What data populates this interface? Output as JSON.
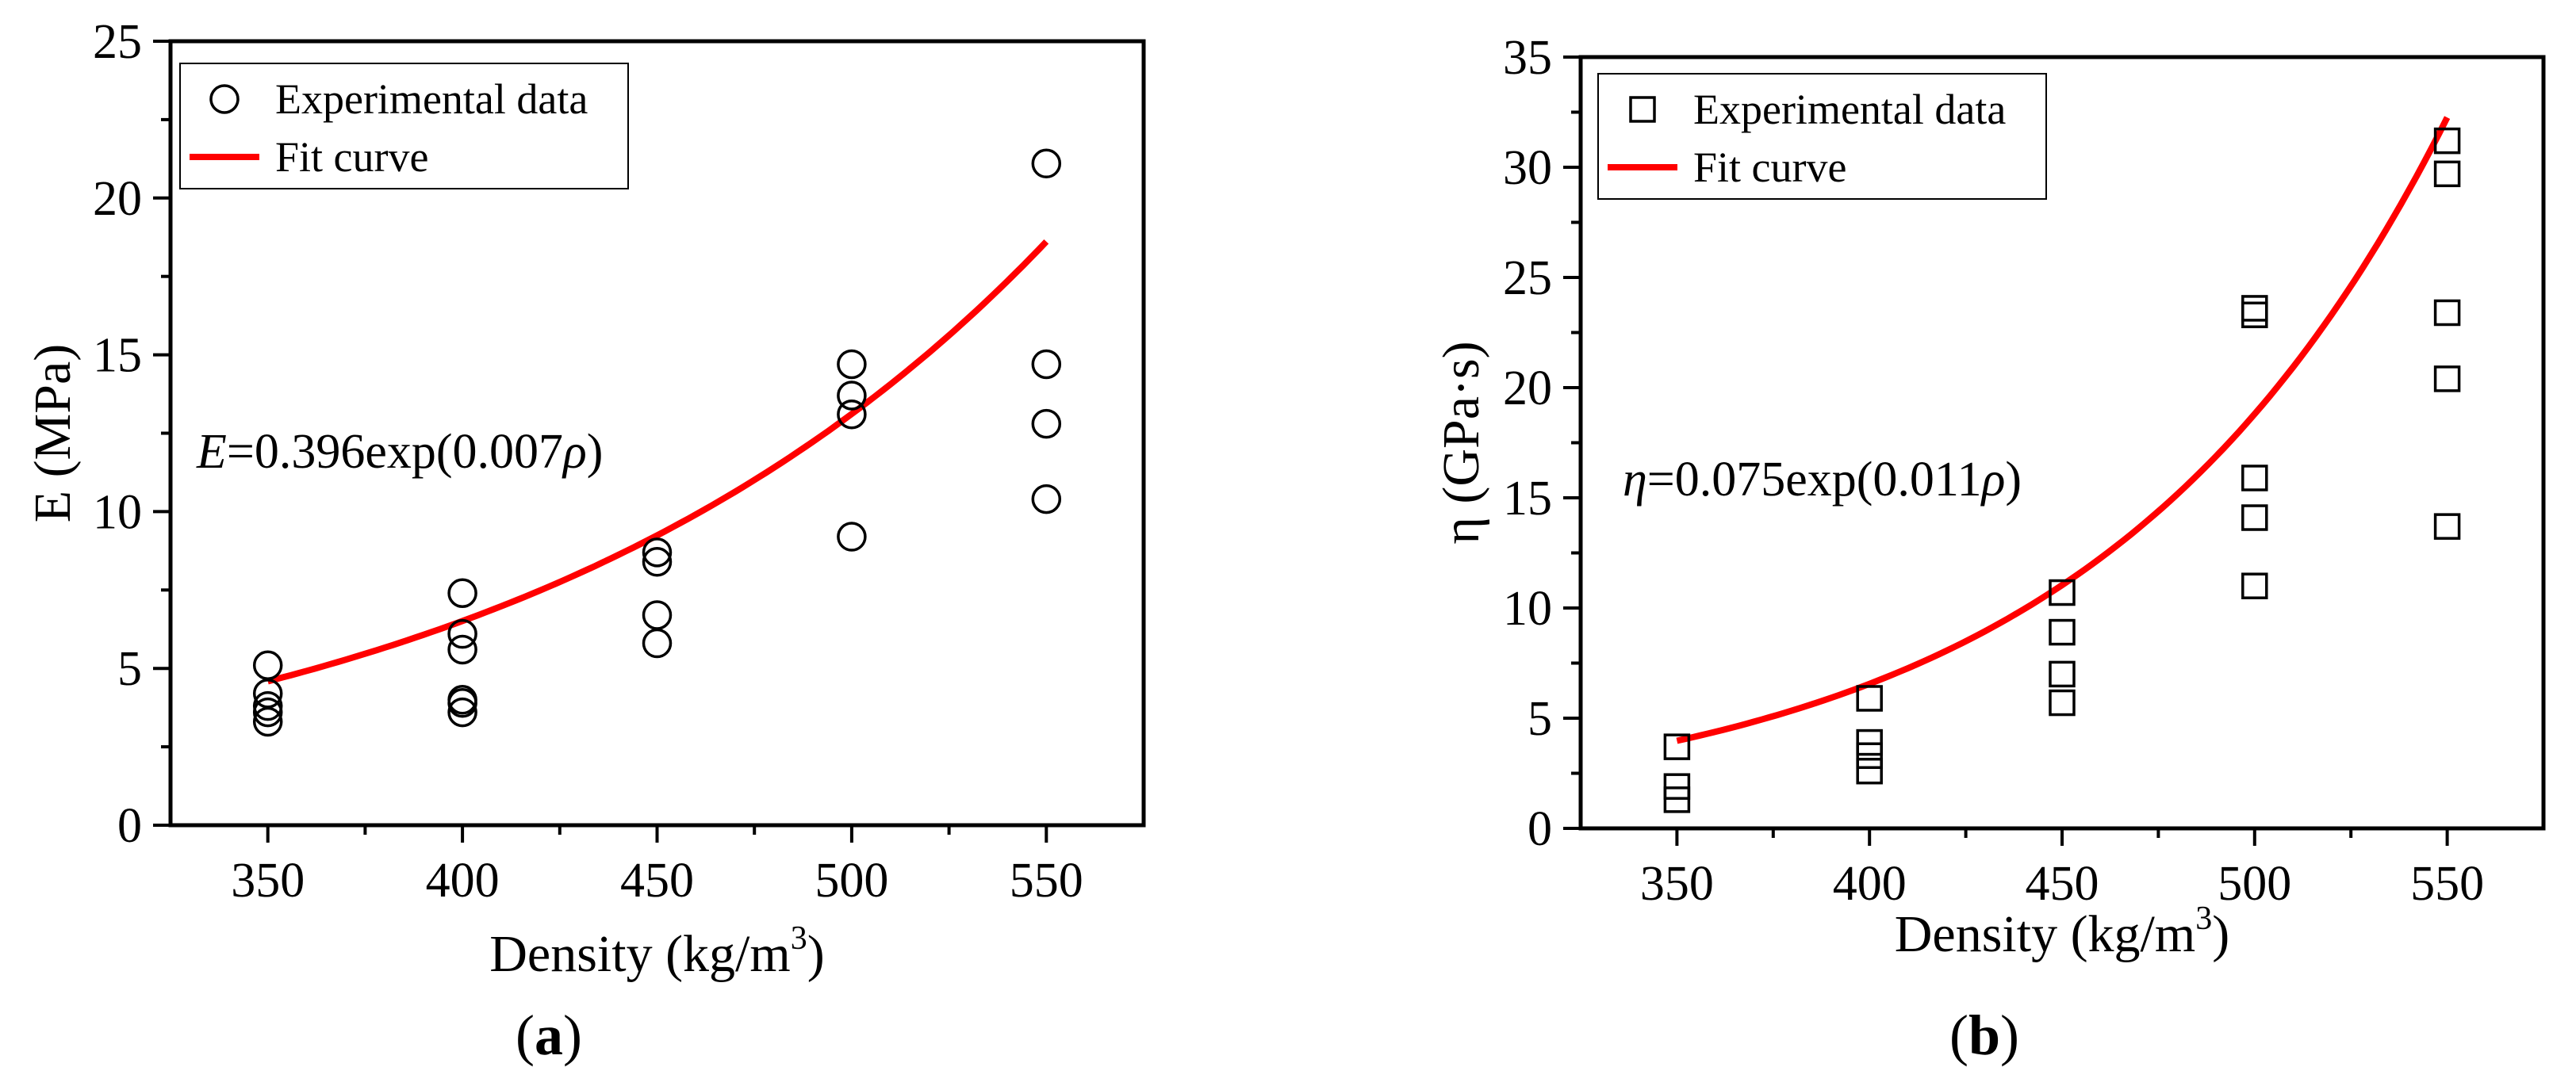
{
  "chart_data": [
    {
      "type": "scatter",
      "panel_label": "a",
      "xlabel": "Density (kg/m",
      "xlabel_sup": "3",
      "xlabel_close": ")",
      "ylabel": "E (MPa)",
      "xlim": [
        325,
        575
      ],
      "ylim": [
        0,
        25
      ],
      "xticks": [
        350,
        400,
        450,
        500,
        550
      ],
      "yticks": [
        0,
        5,
        10,
        15,
        20,
        25
      ],
      "legend": {
        "position": "top-left",
        "marker_label": "Experimental data",
        "line_label": "Fit curve"
      },
      "marker": "circle",
      "fit_color": "#ff0000",
      "annotation": {
        "var": "E",
        "text": "=0.396exp(0.007",
        "rho": "ρ",
        "close": ")"
      },
      "fit": {
        "a": 0.396,
        "b": 0.007
      },
      "fit_range": [
        350,
        550
      ],
      "points": [
        {
          "x": 350,
          "y": 5.1
        },
        {
          "x": 350,
          "y": 4.2
        },
        {
          "x": 350,
          "y": 3.8
        },
        {
          "x": 350,
          "y": 3.6
        },
        {
          "x": 350,
          "y": 3.3
        },
        {
          "x": 400,
          "y": 7.4
        },
        {
          "x": 400,
          "y": 6.1
        },
        {
          "x": 400,
          "y": 5.6
        },
        {
          "x": 400,
          "y": 4.0
        },
        {
          "x": 400,
          "y": 3.9
        },
        {
          "x": 400,
          "y": 3.6
        },
        {
          "x": 450,
          "y": 8.7
        },
        {
          "x": 450,
          "y": 8.4
        },
        {
          "x": 450,
          "y": 6.7
        },
        {
          "x": 450,
          "y": 5.8
        },
        {
          "x": 500,
          "y": 14.7
        },
        {
          "x": 500,
          "y": 13.7
        },
        {
          "x": 500,
          "y": 13.1
        },
        {
          "x": 500,
          "y": 9.2
        },
        {
          "x": 550,
          "y": 21.1
        },
        {
          "x": 550,
          "y": 14.7
        },
        {
          "x": 550,
          "y": 12.8
        },
        {
          "x": 550,
          "y": 10.4
        }
      ]
    },
    {
      "type": "scatter",
      "panel_label": "b",
      "xlabel": "Density (kg/m",
      "xlabel_sup": "3",
      "xlabel_close": ")",
      "ylabel": "η (GPa·s)",
      "xlim": [
        325,
        575
      ],
      "ylim": [
        0,
        35
      ],
      "xticks": [
        350,
        400,
        450,
        500,
        550
      ],
      "yticks": [
        0,
        5,
        10,
        15,
        20,
        25,
        30,
        35
      ],
      "legend": {
        "position": "top-left",
        "marker_label": "Experimental data",
        "line_label": "Fit curve"
      },
      "marker": "square",
      "fit_color": "#ff0000",
      "annotation": {
        "var": "η",
        "text": "=0.075exp(0.011",
        "rho": "ρ",
        "close": ")"
      },
      "fit": {
        "a": 0.075,
        "b": 0.011,
        "shift": 0.45
      },
      "fit_range": [
        350,
        550
      ],
      "points": [
        {
          "x": 350,
          "y": 3.7
        },
        {
          "x": 350,
          "y": 1.9
        },
        {
          "x": 350,
          "y": 1.3
        },
        {
          "x": 400,
          "y": 5.9
        },
        {
          "x": 400,
          "y": 3.9
        },
        {
          "x": 400,
          "y": 3.3
        },
        {
          "x": 400,
          "y": 2.6
        },
        {
          "x": 450,
          "y": 10.7
        },
        {
          "x": 450,
          "y": 8.9
        },
        {
          "x": 450,
          "y": 7.0
        },
        {
          "x": 450,
          "y": 5.7
        },
        {
          "x": 500,
          "y": 23.6
        },
        {
          "x": 500,
          "y": 23.3
        },
        {
          "x": 500,
          "y": 15.9
        },
        {
          "x": 500,
          "y": 14.1
        },
        {
          "x": 500,
          "y": 11.0
        },
        {
          "x": 550,
          "y": 31.2
        },
        {
          "x": 550,
          "y": 29.7
        },
        {
          "x": 550,
          "y": 23.4
        },
        {
          "x": 550,
          "y": 20.4
        },
        {
          "x": 550,
          "y": 13.7
        }
      ]
    }
  ]
}
